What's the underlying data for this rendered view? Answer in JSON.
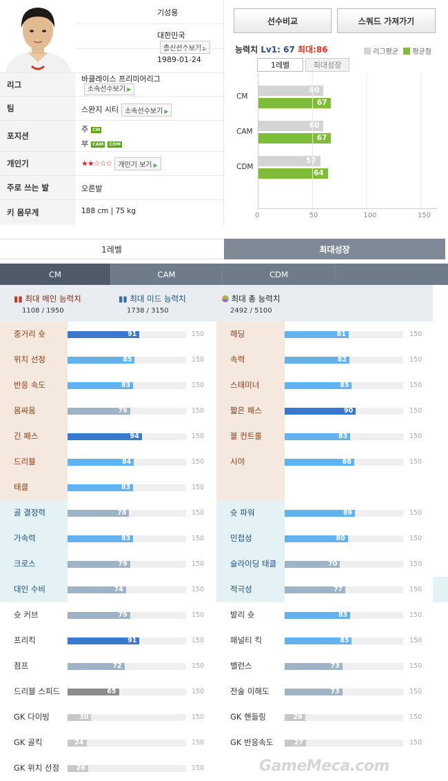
{
  "player": {
    "name": "기성용",
    "nationality": "대한민국",
    "nationality_link": "출신선수보기",
    "birthdate": "1989-01-24",
    "league_label": "리그",
    "league": "바클레이스 프리미어리그",
    "league_link": "소속선수보기",
    "team_label": "팀",
    "team": "스완지 시티",
    "team_link": "소속선수보기",
    "position_label": "포지션",
    "main_prefix": "주",
    "main_positions": [
      "CM"
    ],
    "sub_prefix": "부",
    "sub_positions": [
      "CAM",
      "CDM"
    ],
    "popularity_label": "개인기",
    "popularity_stars": "★★☆☆☆",
    "popularity_rating": 2,
    "popularity_link": "개인기 보기",
    "foot_label": "주로 쓰는 발",
    "foot": "오른발",
    "body_label": "키 몸무게",
    "body": "188 cm | 75 kg"
  },
  "actions": {
    "compare": "선수비교",
    "squad": "스쿼드 가져가기"
  },
  "ability": {
    "title": "능력치",
    "lv1": "Lv1: 67",
    "max": "최대:86",
    "legend_league": "리그평균",
    "legend_avg": "평균점",
    "seg_level1": "1레벨",
    "seg_max": "최대성장",
    "colors": {
      "league": "#d4d4d4",
      "avg": "#7dbd3a",
      "max_text": "#e0301e",
      "lv_text": "#2b4f8a"
    }
  },
  "chart_data": {
    "type": "bar",
    "orientation": "horizontal",
    "categories": [
      "CM",
      "CAM",
      "CDM"
    ],
    "series": [
      {
        "name": "리그평균",
        "values": [
          60,
          60,
          57
        ]
      },
      {
        "name": "평균점",
        "values": [
          67,
          67,
          64
        ]
      }
    ],
    "xticks": [
      "0",
      "50",
      "100",
      "150"
    ],
    "xlim": [
      0,
      150
    ],
    "legend": "top-right"
  },
  "tabs": {
    "level1": "1레벨",
    "max_growth": "최대성장"
  },
  "pos_tabs": [
    "CM",
    "CAM",
    "CDM",
    ""
  ],
  "summary": [
    {
      "label": "최대 메인 능력치",
      "value": "1108 / 1950"
    },
    {
      "label": "최대 미드 능력치",
      "value": "1738 / 3150"
    },
    {
      "label": "최대 총 능력치",
      "value": "2492 / 5100"
    }
  ],
  "stat_max": "150",
  "stats_left": [
    {
      "name": "중거리 슛",
      "value": 91
    },
    {
      "name": "위치 선정",
      "value": 85
    },
    {
      "name": "반응 속도",
      "value": 83
    },
    {
      "name": "몸싸움",
      "value": 79
    },
    {
      "name": "긴 패스",
      "value": 94
    },
    {
      "name": "드리블",
      "value": 84
    },
    {
      "name": "태클",
      "value": 83
    },
    {
      "name": "골 결정력",
      "value": 78
    },
    {
      "name": "가속력",
      "value": 83
    },
    {
      "name": "크로스",
      "value": 79
    },
    {
      "name": "대인 수비",
      "value": 74
    },
    {
      "name": "슛 커브",
      "value": 79
    },
    {
      "name": "프리킥",
      "value": 91
    },
    {
      "name": "점프",
      "value": 72
    },
    {
      "name": "드리블 스피드",
      "value": 65
    },
    {
      "name": "GK 다이빙",
      "value": 30
    },
    {
      "name": "GK 골킥",
      "value": 24
    },
    {
      "name": "GK 위치 선정",
      "value": 26
    }
  ],
  "stats_right": [
    {
      "name": "헤딩",
      "value": 81
    },
    {
      "name": "속력",
      "value": 82
    },
    {
      "name": "스태미너",
      "value": 85
    },
    {
      "name": "짧은 패스",
      "value": 90
    },
    {
      "name": "볼 컨트롤",
      "value": 83
    },
    {
      "name": "시야",
      "value": 88
    },
    {
      "name": "",
      "value": null
    },
    {
      "name": "슛 파워",
      "value": 89
    },
    {
      "name": "민첩성",
      "value": 80
    },
    {
      "name": "슬라이딩 태클",
      "value": 70
    },
    {
      "name": "적극성",
      "value": 77
    },
    {
      "name": "발리 슛",
      "value": 83
    },
    {
      "name": "패널티 킥",
      "value": 85
    },
    {
      "name": "밸런스",
      "value": 73
    },
    {
      "name": "전술 이해도",
      "value": 73
    },
    {
      "name": "GK 핸들링",
      "value": 26
    },
    {
      "name": "GK 반응속도",
      "value": 27
    }
  ],
  "watermark": "GameMeca.com"
}
